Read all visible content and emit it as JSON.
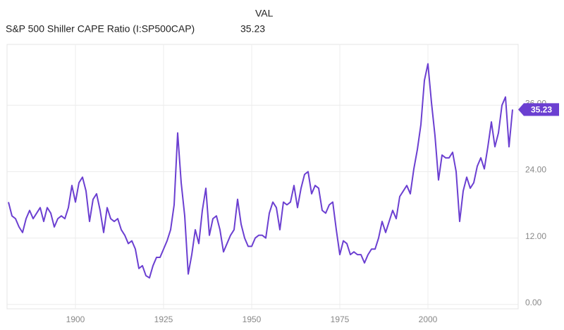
{
  "chart_data": {
    "type": "line",
    "title": "S&P 500 Shiller CAPE Ratio (I:SP500CAP)",
    "value_header": "VAL",
    "x": [
      1881,
      1882,
      1883,
      1884,
      1885,
      1886,
      1887,
      1888,
      1889,
      1890,
      1891,
      1892,
      1893,
      1894,
      1895,
      1896,
      1897,
      1898,
      1899,
      1900,
      1901,
      1902,
      1903,
      1904,
      1905,
      1906,
      1907,
      1908,
      1909,
      1910,
      1911,
      1912,
      1913,
      1914,
      1915,
      1916,
      1917,
      1918,
      1919,
      1920,
      1921,
      1922,
      1923,
      1924,
      1925,
      1926,
      1927,
      1928,
      1929,
      1930,
      1931,
      1932,
      1933,
      1934,
      1935,
      1936,
      1937,
      1938,
      1939,
      1940,
      1941,
      1942,
      1943,
      1944,
      1945,
      1946,
      1947,
      1948,
      1949,
      1950,
      1951,
      1952,
      1953,
      1954,
      1955,
      1956,
      1957,
      1958,
      1959,
      1960,
      1961,
      1962,
      1963,
      1964,
      1965,
      1966,
      1967,
      1968,
      1969,
      1970,
      1971,
      1972,
      1973,
      1974,
      1975,
      1976,
      1977,
      1978,
      1979,
      1980,
      1981,
      1982,
      1983,
      1984,
      1985,
      1986,
      1987,
      1988,
      1989,
      1990,
      1991,
      1992,
      1993,
      1994,
      1995,
      1996,
      1997,
      1998,
      1999,
      2000,
      2001,
      2002,
      2003,
      2004,
      2005,
      2006,
      2007,
      2008,
      2009,
      2010,
      2011,
      2012,
      2013,
      2014,
      2015,
      2016,
      2017,
      2018,
      2019,
      2020,
      2021,
      2022,
      2023,
      2024
    ],
    "series": [
      {
        "name": "S&P 500 Shiller CAPE Ratio (I:SP500CAP)",
        "color": "#6b3fd1",
        "values": [
          18.5,
          16,
          15.5,
          14,
          13,
          15.5,
          17,
          15.5,
          16.5,
          17.5,
          15,
          17.5,
          16.5,
          14,
          15.5,
          16,
          15.5,
          17.5,
          21.5,
          18.5,
          22,
          23,
          20.5,
          15,
          19,
          20,
          17,
          13,
          17.5,
          15.5,
          15,
          15.5,
          13.5,
          12.5,
          11,
          11.5,
          10,
          6.5,
          7,
          5.2,
          4.8,
          7,
          8.5,
          8.5,
          10,
          11.5,
          13.5,
          18,
          31,
          22,
          16,
          5.5,
          9,
          13.5,
          11,
          17,
          21,
          12.5,
          15.5,
          16,
          13.5,
          9.5,
          11,
          12.5,
          13.5,
          19,
          14.5,
          12,
          10.5,
          10.5,
          12,
          12.5,
          12.5,
          12,
          16.5,
          18.5,
          17.5,
          13.5,
          18.5,
          18,
          18.5,
          21.5,
          17.5,
          21,
          23.5,
          24,
          20,
          21.5,
          21,
          17,
          16.5,
          18,
          18.5,
          13.5,
          9,
          11.5,
          11,
          9,
          9.5,
          9,
          9,
          7.5,
          9,
          10,
          10,
          12,
          15,
          13,
          15,
          17,
          15.5,
          19.5,
          20.5,
          21.5,
          20,
          24.5,
          28,
          32.5,
          40.5,
          43.5,
          36.5,
          30.5,
          22.5,
          27,
          26.5,
          26.5,
          27.5,
          24,
          15,
          20.5,
          23,
          21,
          22,
          25,
          26.5,
          24.5,
          28.5,
          33,
          28.5,
          31,
          36,
          37.5,
          28.5,
          35.23
        ]
      }
    ],
    "xlim": [
      1880.6,
      2025.6
    ],
    "xticks": [
      1900,
      1925,
      1950,
      1975,
      2000
    ],
    "ylim": [
      -0.8,
      47
    ],
    "yticks": [
      {
        "value": 0,
        "label": "0.00"
      },
      {
        "value": 12,
        "label": "12.00"
      },
      {
        "value": 24,
        "label": "24.00"
      },
      {
        "value": 36,
        "label": "36.00"
      }
    ],
    "y_axis_side": "right",
    "grid": true
  }
}
